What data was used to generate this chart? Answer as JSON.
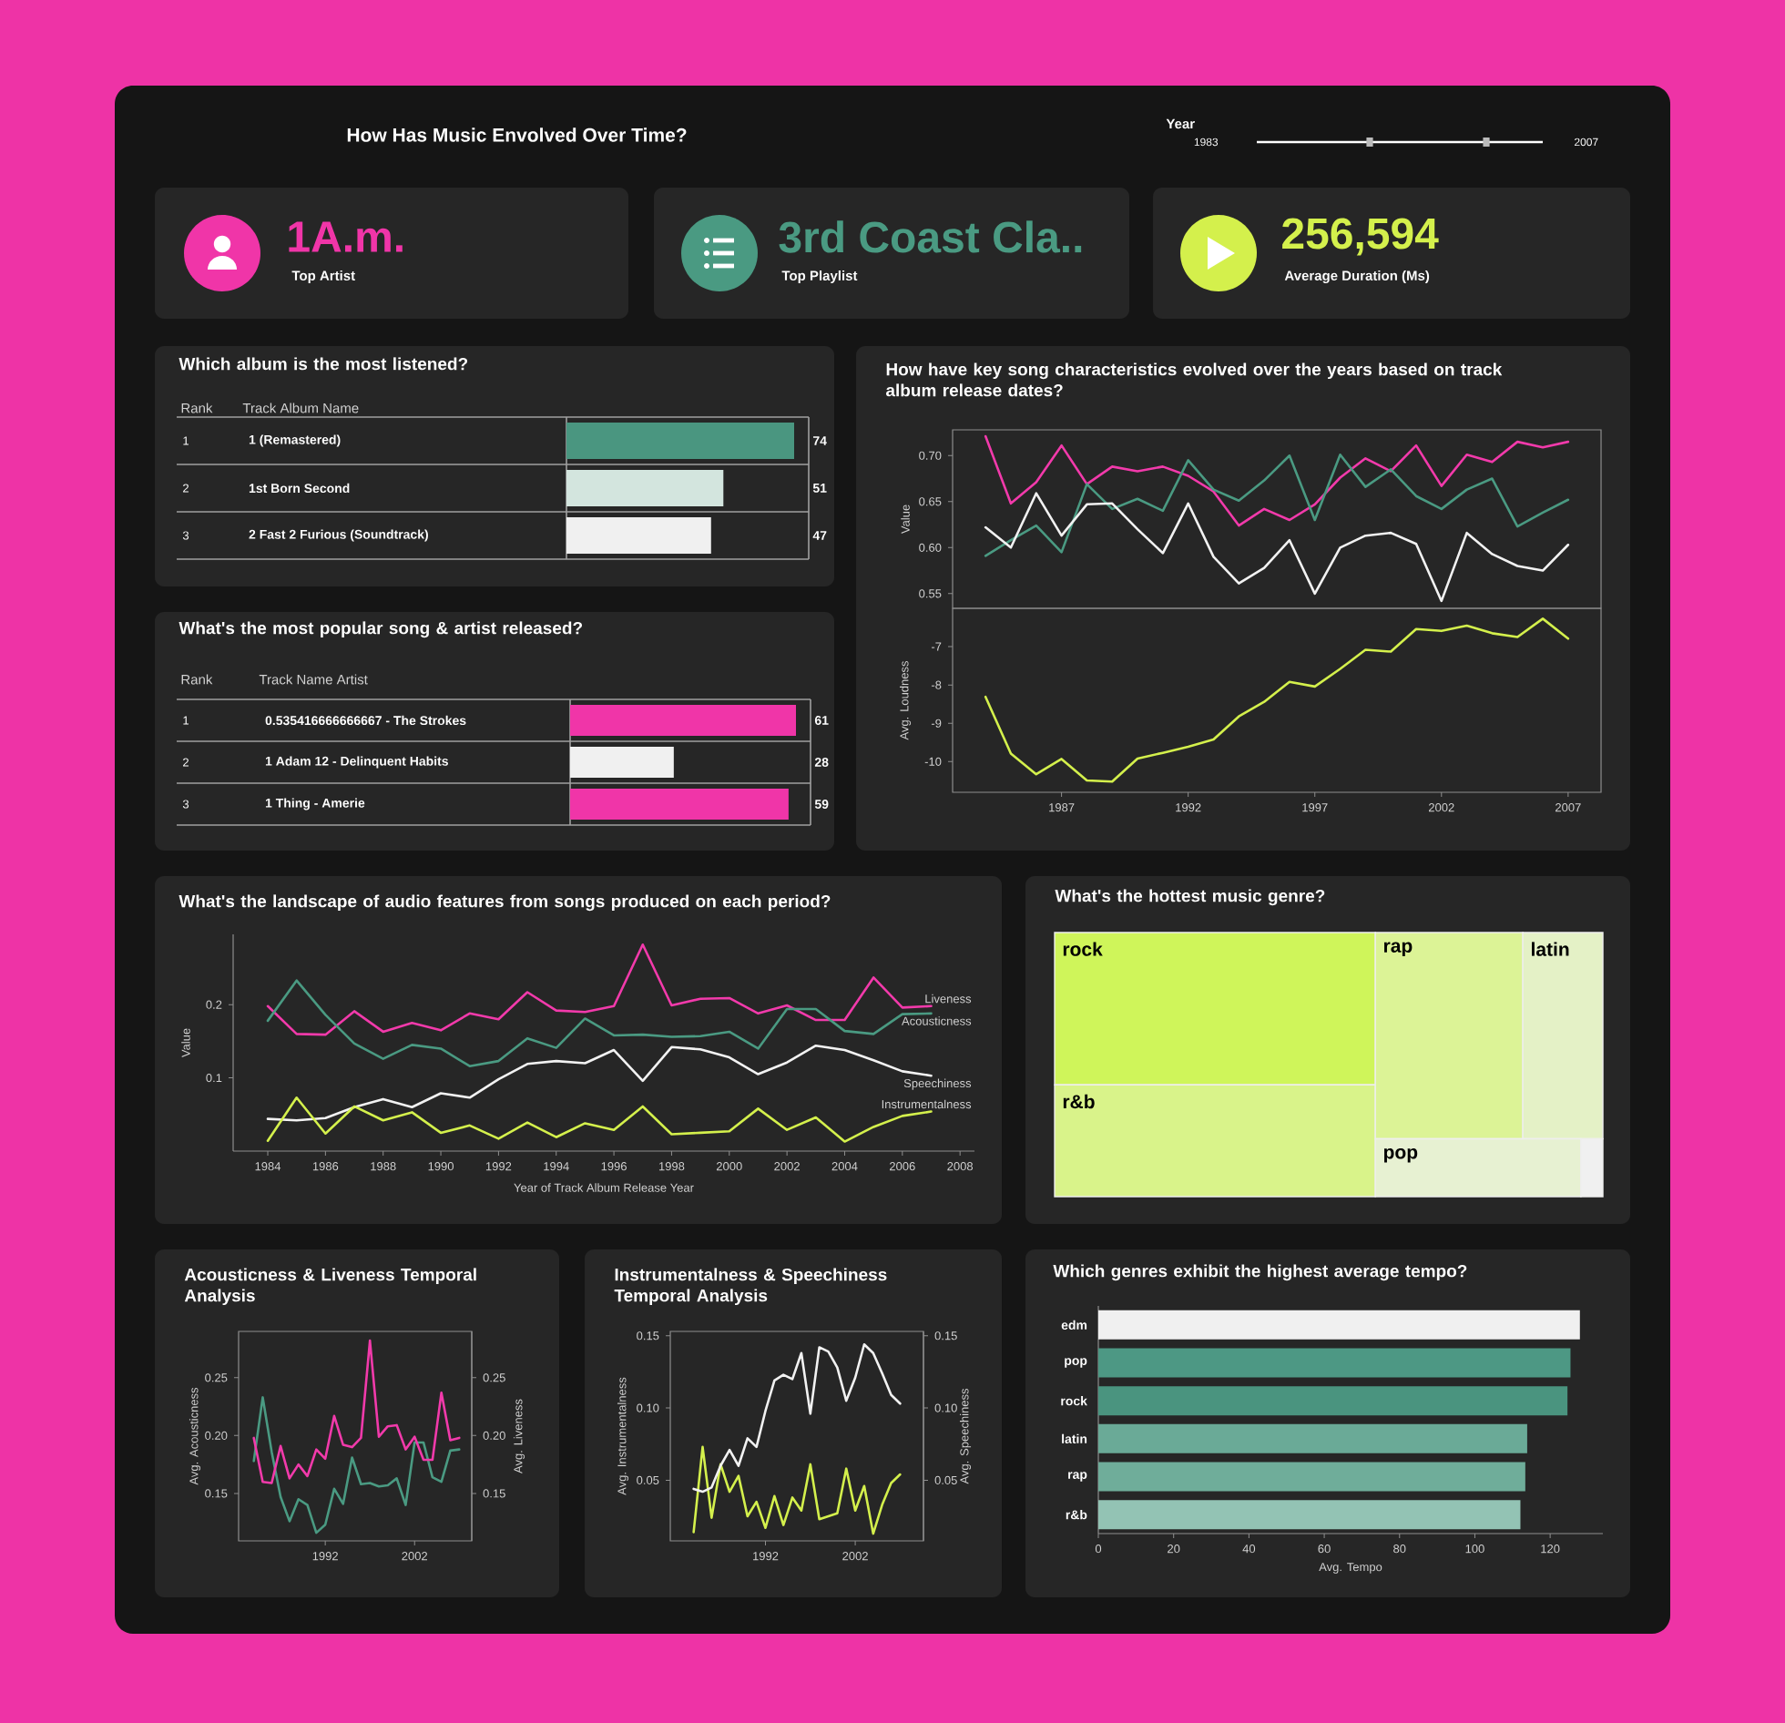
{
  "chart_data": [
    {
      "type": "other",
      "title": "How Has Music Envolved Over Time?",
      "annotations": [
        "Year",
        "1983",
        "2007",
        "1A.m.",
        "Top Artist",
        "3rd Coast Cla..",
        "Top Playlist",
        "256,594",
        "Average Duration (Ms)"
      ],
      "colors": [
        "#f035a8",
        "#4a9a82",
        "#d4f04c"
      ]
    },
    {
      "type": "bar",
      "orientation": "horizontal",
      "title": "Which album is the most listened?",
      "ylabel": "Track Album Name",
      "categories": [
        "1 (Remastered)",
        "1st Born Second",
        "2 Fast 2 Furious (Soundtrack)"
      ],
      "values": [
        74,
        51,
        47
      ],
      "colors": [
        "#4a9680",
        "#d3e5de",
        "#f0f0f0"
      ],
      "data_labels": true,
      "annotations": [
        "Rank",
        "1",
        "2",
        "3"
      ]
    },
    {
      "type": "line",
      "title": "How have key song characteristics evolved over the years based on track album release dates?",
      "ylabel": "Value",
      "x": [
        1984,
        1985,
        1986,
        1987,
        1988,
        1989,
        1990,
        1991,
        1992,
        1993,
        1994,
        1995,
        1996,
        1997,
        1998,
        1999,
        2000,
        2001,
        2002,
        2003,
        2004,
        2005,
        2006,
        2007
      ],
      "series": [
        {
          "color": "#f23aab",
          "values": [
            0.721,
            0.648,
            0.671,
            0.711,
            0.669,
            0.688,
            0.683,
            0.688,
            0.678,
            0.661,
            0.624,
            0.642,
            0.63,
            0.647,
            0.676,
            0.697,
            0.683,
            0.711,
            0.667,
            0.701,
            0.693,
            0.715,
            0.709,
            0.715
          ]
        },
        {
          "color": "#4a9a82",
          "values": [
            0.591,
            0.608,
            0.624,
            0.595,
            0.669,
            0.642,
            0.653,
            0.64,
            0.695,
            0.663,
            0.651,
            0.673,
            0.7,
            0.63,
            0.701,
            0.666,
            0.685,
            0.656,
            0.642,
            0.663,
            0.675,
            0.623,
            0.638,
            0.652
          ]
        },
        {
          "color": "#f2f2f2",
          "values": [
            0.622,
            0.6,
            0.659,
            0.613,
            0.647,
            0.648,
            0.62,
            0.594,
            0.648,
            0.59,
            0.561,
            0.578,
            0.608,
            0.55,
            0.6,
            0.613,
            0.616,
            0.604,
            0.542,
            0.616,
            0.593,
            0.58,
            0.575,
            0.603
          ]
        }
      ],
      "xlim": [
        1982.7,
        2008.3
      ],
      "ylim": [
        0.534,
        0.728
      ],
      "yticks": [
        0.55,
        {
          "value": 0.6,
          "label": "0.60"
        },
        0.65,
        {
          "value": 0.7,
          "label": "0.70"
        }
      ],
      "tick_labels": "y"
    },
    {
      "type": "line",
      "ylabel": "Avg. Loudness",
      "x": [
        1984,
        1985,
        1986,
        1987,
        1988,
        1989,
        1990,
        1991,
        1992,
        1993,
        1994,
        1995,
        1996,
        1997,
        1998,
        1999,
        2000,
        2001,
        2002,
        2003,
        2004,
        2005,
        2006,
        2007
      ],
      "series": [
        {
          "color": "#d4f04c",
          "values": [
            -8.31,
            -9.79,
            -10.33,
            -9.93,
            -10.49,
            -10.52,
            -9.92,
            -9.77,
            -9.61,
            -9.42,
            -8.82,
            -8.44,
            -7.92,
            -8.04,
            -7.58,
            -7.08,
            -7.13,
            -6.54,
            -6.59,
            -6.45,
            -6.65,
            -6.75,
            -6.27,
            -6.79
          ]
        }
      ],
      "xlim": [
        1982.7,
        2008.3
      ],
      "ylim": [
        -10.8,
        -6.0
      ],
      "xticks": [
        1987,
        1992,
        1997,
        2002,
        2007
      ],
      "yticks": [
        -10,
        -9,
        -8,
        -7
      ]
    },
    {
      "type": "bar",
      "orientation": "horizontal",
      "title": "What's the most popular song & artist released?",
      "ylabel": "Track Name Artist",
      "categories": [
        "0.535416666666667 - The Strokes",
        "1 Adam 12 - Delinquent Habits",
        "1 Thing - Amerie"
      ],
      "values": [
        61,
        28,
        59
      ],
      "colors": [
        "#f035a8",
        "#f0f0f0",
        "#f035a8"
      ],
      "data_labels": true,
      "annotations": [
        "Rank",
        "1",
        "2",
        "3"
      ]
    },
    {
      "type": "line",
      "title": "What's the landscape of audio features from songs produced on each period?",
      "xlabel": "Year of Track Album Release Year",
      "ylabel": "Value",
      "x": [
        1984,
        1985,
        1986,
        1987,
        1988,
        1989,
        1990,
        1991,
        1992,
        1993,
        1994,
        1995,
        1996,
        1997,
        1998,
        1999,
        2000,
        2001,
        2002,
        2003,
        2004,
        2005,
        2006,
        2007
      ],
      "series": [
        {
          "name": "Liveness",
          "color": "#f23aab",
          "values": [
            0.198,
            0.16,
            0.159,
            0.191,
            0.163,
            0.175,
            0.165,
            0.188,
            0.18,
            0.217,
            0.192,
            0.19,
            0.198,
            0.282,
            0.199,
            0.208,
            0.209,
            0.188,
            0.199,
            0.179,
            0.179,
            0.237,
            0.196,
            0.198
          ]
        },
        {
          "name": "Acousticness",
          "color": "#4a9a82",
          "values": [
            0.178,
            0.233,
            0.186,
            0.147,
            0.126,
            0.145,
            0.14,
            0.116,
            0.123,
            0.154,
            0.141,
            0.181,
            0.158,
            0.159,
            0.156,
            0.157,
            0.163,
            0.14,
            0.194,
            0.194,
            0.164,
            0.16,
            0.187,
            0.188
          ]
        },
        {
          "name": "Speechiness",
          "color": "#f2f2f2",
          "values": [
            0.044,
            0.042,
            0.045,
            0.06,
            0.071,
            0.06,
            0.079,
            0.073,
            0.098,
            0.119,
            0.123,
            0.12,
            0.138,
            0.096,
            0.142,
            0.139,
            0.128,
            0.105,
            0.121,
            0.144,
            0.138,
            0.124,
            0.109,
            0.103
          ]
        },
        {
          "name": "Instrumentalness",
          "color": "#d4f04c",
          "values": [
            0.014,
            0.073,
            0.024,
            0.061,
            0.042,
            0.053,
            0.025,
            0.035,
            0.017,
            0.039,
            0.019,
            0.038,
            0.029,
            0.061,
            0.023,
            0.025,
            0.027,
            0.058,
            0.029,
            0.046,
            0.013,
            0.033,
            0.048,
            0.054
          ]
        }
      ],
      "xlim": [
        1982.8,
        2008.5
      ],
      "ylim": [
        0,
        0.296
      ],
      "xticks": [
        1984,
        1986,
        1988,
        1990,
        1992,
        1994,
        1996,
        1998,
        2000,
        2002,
        2004,
        2006,
        2008
      ],
      "yticks": [
        0.1,
        0.2
      ]
    },
    {
      "type": "other",
      "title": "What's the hottest music genre?",
      "categories": [
        "rock",
        "r&b",
        "rap",
        "latin",
        "pop",
        null
      ],
      "colors": [
        "#cff55a",
        "#d9f38a",
        "#dcf396",
        "#e4f1c6",
        "#e7f1d2",
        "#f0f0f0"
      ]
    },
    {
      "type": "line",
      "title": "Acousticness & Liveness Temporal Analysis",
      "ylabel": "Avg. Acousticness",
      "y2label": "Avg. Liveness",
      "x": [
        1984,
        1985,
        1986,
        1987,
        1988,
        1989,
        1990,
        1991,
        1992,
        1993,
        1994,
        1995,
        1996,
        1997,
        1998,
        1999,
        2000,
        2001,
        2002,
        2003,
        2004,
        2005,
        2006,
        2007
      ],
      "series": [
        {
          "color": "#4a9a82",
          "values": [
            0.178,
            0.233,
            0.186,
            0.147,
            0.126,
            0.145,
            0.14,
            0.116,
            0.123,
            0.154,
            0.141,
            0.181,
            0.158,
            0.159,
            0.156,
            0.157,
            0.163,
            0.14,
            0.194,
            0.194,
            0.164,
            0.16,
            0.187,
            0.188
          ]
        },
        {
          "color": "#f23aab",
          "axis": "y2",
          "values": [
            0.198,
            0.16,
            0.159,
            0.191,
            0.163,
            0.175,
            0.165,
            0.188,
            0.18,
            0.217,
            0.192,
            0.19,
            0.198,
            0.282,
            0.199,
            0.208,
            0.209,
            0.188,
            0.199,
            0.179,
            0.179,
            0.237,
            0.196,
            0.198
          ]
        }
      ],
      "xlim": [
        1982.3,
        2008.4
      ],
      "ylim": [
        0.109,
        0.29
      ],
      "y2lim": [
        0.109,
        0.29
      ],
      "xticks": [
        1992,
        2002
      ],
      "yticks": [
        0.15,
        {
          "value": 0.2,
          "label": "0.20"
        },
        0.25
      ],
      "y2ticks": [
        0.15,
        {
          "value": 0.2,
          "label": "0.20"
        },
        0.25
      ]
    },
    {
      "type": "line",
      "title": "Instrumentalness & Speechiness Temporal Analysis",
      "ylabel": "Avg. Instrumentalness",
      "y2label": "Avg. Speechiness",
      "x": [
        1984,
        1985,
        1986,
        1987,
        1988,
        1989,
        1990,
        1991,
        1992,
        1993,
        1994,
        1995,
        1996,
        1997,
        1998,
        1999,
        2000,
        2001,
        2002,
        2003,
        2004,
        2005,
        2006,
        2007
      ],
      "series": [
        {
          "color": "#d4f04c",
          "values": [
            0.014,
            0.073,
            0.024,
            0.061,
            0.042,
            0.053,
            0.025,
            0.035,
            0.017,
            0.039,
            0.019,
            0.038,
            0.029,
            0.061,
            0.023,
            0.025,
            0.027,
            0.058,
            0.029,
            0.046,
            0.013,
            0.033,
            0.048,
            0.054
          ]
        },
        {
          "color": "#f2f2f2",
          "axis": "y2",
          "values": [
            0.044,
            0.042,
            0.045,
            0.06,
            0.071,
            0.06,
            0.079,
            0.073,
            0.098,
            0.119,
            0.123,
            0.12,
            0.138,
            0.096,
            0.142,
            0.139,
            0.128,
            0.105,
            0.121,
            0.144,
            0.138,
            0.124,
            0.109,
            0.103
          ]
        }
      ],
      "xlim": [
        1981.4,
        2009.6
      ],
      "ylim": [
        0.008,
        0.153
      ],
      "y2lim": [
        0.008,
        0.153
      ],
      "xticks": [
        1992,
        2002
      ],
      "yticks": [
        0.05,
        {
          "value": 0.1,
          "label": "0.10"
        },
        0.15
      ],
      "y2ticks": [
        0.05,
        {
          "value": 0.1,
          "label": "0.10"
        },
        0.15
      ]
    },
    {
      "type": "bar",
      "orientation": "horizontal",
      "title": "Which genres exhibit the highest average tempo?",
      "xlabel": "Avg. Tempo",
      "categories": [
        "edm",
        "pop",
        "rock",
        "latin",
        "rap",
        "r&b"
      ],
      "values": [
        127.9,
        125.4,
        124.6,
        113.9,
        113.4,
        112.1
      ],
      "colors": [
        "#f0f0f0",
        "#4d9884",
        "#4a947f",
        "#6aaa97",
        "#6fad9a",
        "#93c3b4"
      ],
      "xlim": [
        0,
        134
      ],
      "xticks": [
        0,
        20,
        40,
        60,
        80,
        100,
        120
      ]
    }
  ]
}
